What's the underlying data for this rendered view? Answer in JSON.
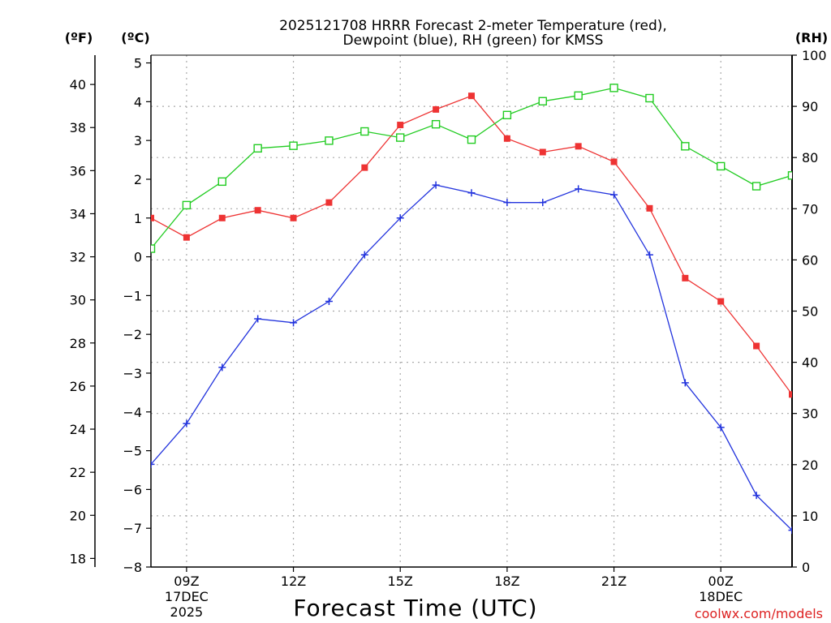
{
  "chart_data": {
    "type": "line",
    "title_line1": "2025121708 HRRR Forecast 2-meter Temperature (red),",
    "title_line2": "Dewpoint (blue), RH (green) for KMSS",
    "xlabel": "Forecast Time (UTC)",
    "credit": "coolwx.com/models",
    "left_outer_axis_label": "(ºF)",
    "left_inner_axis_label": "(ºC)",
    "right_axis_label": "(RH)",
    "x": [
      "08Z",
      "09Z",
      "10Z",
      "11Z",
      "12Z",
      "13Z",
      "14Z",
      "15Z",
      "16Z",
      "17Z",
      "18Z",
      "19Z",
      "20Z",
      "21Z",
      "22Z",
      "23Z",
      "00Z",
      "01Z",
      "02Z"
    ],
    "x_ticks": [
      {
        "index": 1,
        "label": "09Z",
        "sub1": "17DEC",
        "sub2": "2025"
      },
      {
        "index": 4,
        "label": "12Z",
        "sub1": "",
        "sub2": ""
      },
      {
        "index": 7,
        "label": "15Z",
        "sub1": "",
        "sub2": ""
      },
      {
        "index": 10,
        "label": "18Z",
        "sub1": "",
        "sub2": ""
      },
      {
        "index": 13,
        "label": "21Z",
        "sub1": "",
        "sub2": ""
      },
      {
        "index": 16,
        "label": "00Z",
        "sub1": "18DEC",
        "sub2": ""
      }
    ],
    "celsius_range": [
      -8,
      5.2
    ],
    "celsius_ticks": [
      "5",
      "4",
      "3",
      "2",
      "1",
      "0",
      "−1",
      "−2",
      "−3",
      "−4",
      "−5",
      "−6",
      "−7",
      "−8"
    ],
    "fahrenheit_ticks": [
      "40",
      "38",
      "36",
      "34",
      "32",
      "30",
      "28",
      "26",
      "24",
      "22",
      "20",
      "18"
    ],
    "rh_range": [
      0,
      100
    ],
    "rh_ticks": [
      "100",
      "90",
      "80",
      "70",
      "60",
      "50",
      "40",
      "30",
      "20",
      "10",
      "0"
    ],
    "series": [
      {
        "name": "Temperature",
        "units": "C",
        "color": "#ee3333",
        "marker": "filled-square",
        "values": [
          1.0,
          0.5,
          1.0,
          1.2,
          1.0,
          1.4,
          2.3,
          3.4,
          3.8,
          4.15,
          3.05,
          2.7,
          2.85,
          2.45,
          1.25,
          -0.55,
          -1.15,
          -2.3,
          -3.55
        ]
      },
      {
        "name": "Dewpoint",
        "units": "C",
        "color": "#2233dd",
        "marker": "plus",
        "values": [
          -5.35,
          -4.3,
          -2.85,
          -1.6,
          -1.7,
          -1.15,
          0.05,
          1.0,
          1.85,
          1.65,
          1.4,
          1.4,
          1.75,
          1.6,
          0.05,
          -3.25,
          -4.4,
          -6.15,
          -7.05
        ]
      },
      {
        "name": "RH",
        "units": "%",
        "color": "#22cc22",
        "marker": "open-square",
        "values": [
          62.2,
          70.7,
          75.3,
          81.8,
          82.3,
          83.3,
          85.1,
          83.9,
          86.5,
          83.5,
          88.3,
          91.0,
          92.1,
          93.6,
          91.6,
          82.2,
          78.3,
          74.4,
          76.5
        ]
      }
    ]
  }
}
